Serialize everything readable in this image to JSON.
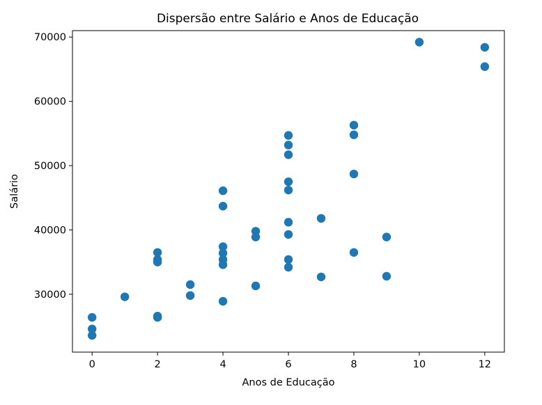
{
  "chart_data": {
    "type": "scatter",
    "title": "Dispersão entre Salário e Anos de Educação",
    "xlabel": "Anos de Educação",
    "ylabel": "Salário",
    "xlim": [
      -0.6,
      12.6
    ],
    "ylim": [
      21000,
      71000
    ],
    "xticks": [
      0,
      2,
      4,
      6,
      8,
      10,
      12
    ],
    "yticks": [
      30000,
      40000,
      50000,
      60000,
      70000
    ],
    "grid": false,
    "color": "#1f77b4",
    "points": [
      {
        "x": 0,
        "y": 26400
      },
      {
        "x": 0,
        "y": 24600
      },
      {
        "x": 0,
        "y": 23600
      },
      {
        "x": 1,
        "y": 29600
      },
      {
        "x": 2,
        "y": 36500
      },
      {
        "x": 2,
        "y": 35400
      },
      {
        "x": 2,
        "y": 35000
      },
      {
        "x": 2,
        "y": 26600
      },
      {
        "x": 2,
        "y": 26400
      },
      {
        "x": 3,
        "y": 31500
      },
      {
        "x": 3,
        "y": 29800
      },
      {
        "x": 4,
        "y": 46100
      },
      {
        "x": 4,
        "y": 43700
      },
      {
        "x": 4,
        "y": 37400
      },
      {
        "x": 4,
        "y": 36400
      },
      {
        "x": 4,
        "y": 35400
      },
      {
        "x": 4,
        "y": 34600
      },
      {
        "x": 4,
        "y": 28900
      },
      {
        "x": 5,
        "y": 39800
      },
      {
        "x": 5,
        "y": 38900
      },
      {
        "x": 5,
        "y": 31300
      },
      {
        "x": 6,
        "y": 54700
      },
      {
        "x": 6,
        "y": 53200
      },
      {
        "x": 6,
        "y": 51700
      },
      {
        "x": 6,
        "y": 47500
      },
      {
        "x": 6,
        "y": 46200
      },
      {
        "x": 6,
        "y": 41200
      },
      {
        "x": 6,
        "y": 39300
      },
      {
        "x": 6,
        "y": 35400
      },
      {
        "x": 6,
        "y": 34200
      },
      {
        "x": 7,
        "y": 41800
      },
      {
        "x": 7,
        "y": 32700
      },
      {
        "x": 8,
        "y": 56300
      },
      {
        "x": 8,
        "y": 54800
      },
      {
        "x": 8,
        "y": 48700
      },
      {
        "x": 8,
        "y": 36500
      },
      {
        "x": 9,
        "y": 38900
      },
      {
        "x": 9,
        "y": 32800
      },
      {
        "x": 10,
        "y": 69200
      },
      {
        "x": 12,
        "y": 68400
      },
      {
        "x": 12,
        "y": 65400
      }
    ]
  }
}
